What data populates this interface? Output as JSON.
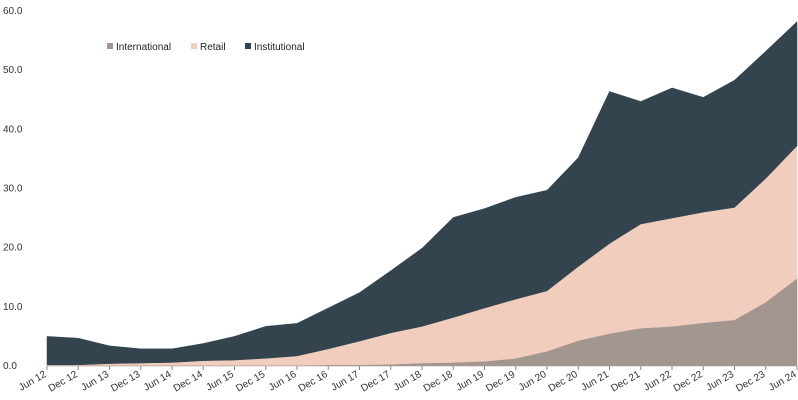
{
  "chart_data": {
    "type": "area",
    "stacked": true,
    "x": [
      "Jun 12",
      "Dec 12",
      "Jun 13",
      "Dec 13",
      "Jun 14",
      "Dec 14",
      "Jun 15",
      "Dec 15",
      "Jun 16",
      "Dec 16",
      "Jun 17",
      "Dec 17",
      "Jun 18",
      "Dec 18",
      "Jun 19",
      "Dec 19",
      "Jun 20",
      "Dec 20",
      "Jun 21",
      "Dec 21",
      "Jun 22",
      "Dec 22",
      "Jun 23",
      "Dec 23",
      "Jun 24"
    ],
    "series": [
      {
        "name": "International",
        "color": "#a39590",
        "values": [
          0.1,
          0.1,
          0.1,
          0.1,
          0.1,
          0.1,
          0.1,
          0.1,
          0.1,
          0.2,
          0.2,
          0.3,
          0.5,
          0.6,
          0.8,
          1.3,
          2.5,
          4.3,
          5.5,
          6.4,
          6.7,
          7.3,
          7.8,
          10.8,
          14.8
        ]
      },
      {
        "name": "Retail",
        "color": "#f0cdbd",
        "values": [
          0.1,
          0.1,
          0.3,
          0.4,
          0.5,
          0.8,
          0.9,
          1.2,
          1.6,
          2.7,
          4.0,
          5.3,
          6.2,
          7.6,
          9.0,
          10.0,
          10.2,
          12.5,
          15.2,
          17.6,
          18.3,
          18.7,
          19.0,
          20.9,
          22.4
        ]
      },
      {
        "name": "Institutional",
        "color": "#33444f",
        "values": [
          4.8,
          4.5,
          3.0,
          2.4,
          2.3,
          2.9,
          4.0,
          5.4,
          5.5,
          6.9,
          8.2,
          10.5,
          13.2,
          16.9,
          16.8,
          17.2,
          17.0,
          18.4,
          25.7,
          20.7,
          22.0,
          19.4,
          21.5,
          21.5,
          21.0
        ]
      }
    ],
    "ylim": [
      0,
      60
    ],
    "yticks": [
      "0.0",
      "10.0",
      "20.0",
      "30.0",
      "40.0",
      "50.0",
      "60.0"
    ],
    "ytick_values": [
      0,
      10,
      20,
      30,
      40,
      50,
      60
    ],
    "grid": false,
    "legend_position": "top-left"
  }
}
